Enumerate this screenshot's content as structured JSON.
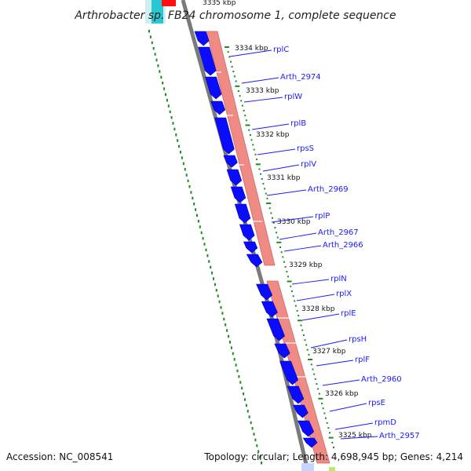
{
  "title": "Arthrobacter sp. FB24 chromosome 1, complete sequence",
  "footer": {
    "accession": "Accession: NC_008541",
    "summary": "Topology: circular; Length: 4,698,945 bp; Genes: 4,214"
  },
  "kbp_labels": [
    "3335 kbp",
    "3334 kbp",
    "3333 kbp",
    "3332 kbp",
    "3331 kbp",
    "3330 kbp",
    "3329 kbp",
    "3328 kbp",
    "3327 kbp",
    "3326 kbp",
    "3325 kbp"
  ],
  "genes": [
    "rplC",
    "Arth_2974",
    "rplW",
    "rplB",
    "rpsS",
    "rplV",
    "Arth_2969",
    "rplP",
    "Arth_2967",
    "Arth_2966",
    "rplN",
    "rplX",
    "rplE",
    "rpsH",
    "rplF",
    "Arth_2960",
    "rpsE",
    "rpmD",
    "Arth_2957"
  ],
  "colors": {
    "backbone": "#7a7a7a",
    "cds": "#0b0bff",
    "gene_band": "#f08a84",
    "gene_label": "#1a1aff",
    "dotted_ring": "#1f8a1f",
    "top_cyan": "#29c7d1",
    "top_red": "#ff1010"
  }
}
